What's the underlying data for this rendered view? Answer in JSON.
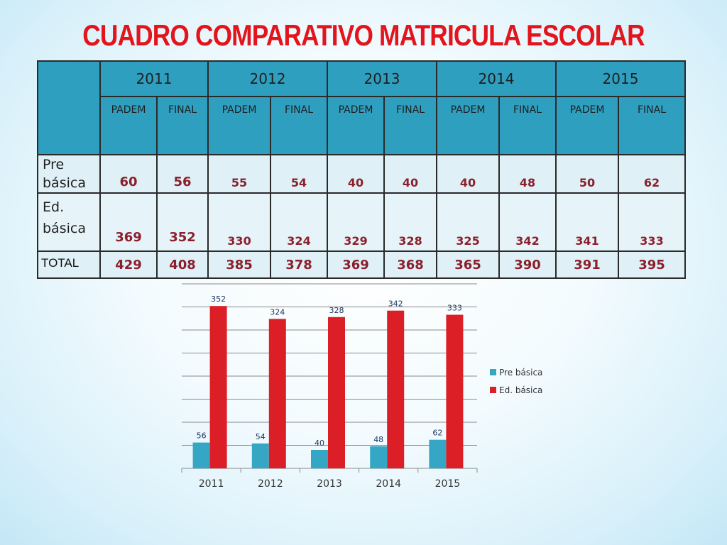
{
  "title": "CUADRO COMPARATIVO MATRICULA ESCOLAR",
  "table": {
    "years": [
      "2011",
      "2012",
      "2013",
      "2014",
      "2015"
    ],
    "subheaders": [
      "PADEM",
      "FINAL",
      "PADEM",
      "FINAL",
      "PADEM",
      "FINAL",
      "PADEM",
      "FINAL",
      "PADEM",
      "FINAL"
    ],
    "rows": [
      {
        "label_line1": "Pre",
        "label_line2": "básica",
        "values": [
          "60",
          "56",
          "55",
          "54",
          "40",
          "40",
          "40",
          "48",
          "50",
          "62"
        ]
      },
      {
        "label_line1": "Ed.",
        "label_line2": "básica",
        "values": [
          "369",
          "352",
          "330",
          "324",
          "329",
          "328",
          "325",
          "342",
          "341",
          "333"
        ]
      },
      {
        "label_line1": "TOTAL",
        "label_line2": "",
        "values": [
          "429",
          "408",
          "385",
          "378",
          "369",
          "368",
          "365",
          "390",
          "391",
          "395"
        ]
      }
    ]
  },
  "chart_data": {
    "type": "bar",
    "categories": [
      "2011",
      "2012",
      "2013",
      "2014",
      "2015"
    ],
    "series": [
      {
        "name": "Pre básica",
        "values": [
          56,
          54,
          40,
          48,
          62
        ],
        "color": "#35a7c4"
      },
      {
        "name": "Ed. básica",
        "values": [
          352,
          324,
          328,
          342,
          333
        ],
        "color": "#dc1f26"
      }
    ],
    "ylim": [
      0,
      400
    ],
    "grid": true,
    "legend": "right",
    "label_color": "#1f3864"
  }
}
